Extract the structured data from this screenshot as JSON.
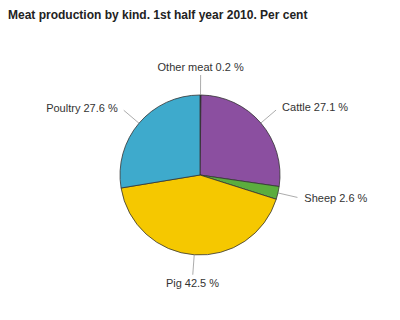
{
  "chart_data": {
    "type": "pie",
    "title": "Meat production by kind. 1st half year 2010. Per cent",
    "categories": [
      "Other meat 0.2 %",
      "Cattle 27.1 %",
      "Sheep 2.6 %",
      "Pig 42.5 %",
      "Poultry 27.6 %"
    ],
    "values": [
      0.2,
      27.1,
      2.6,
      42.5,
      27.6
    ],
    "colors": [
      "#1a1a1a",
      "#8B4FA0",
      "#5BAD3E",
      "#F5C800",
      "#3EAACC"
    ]
  }
}
